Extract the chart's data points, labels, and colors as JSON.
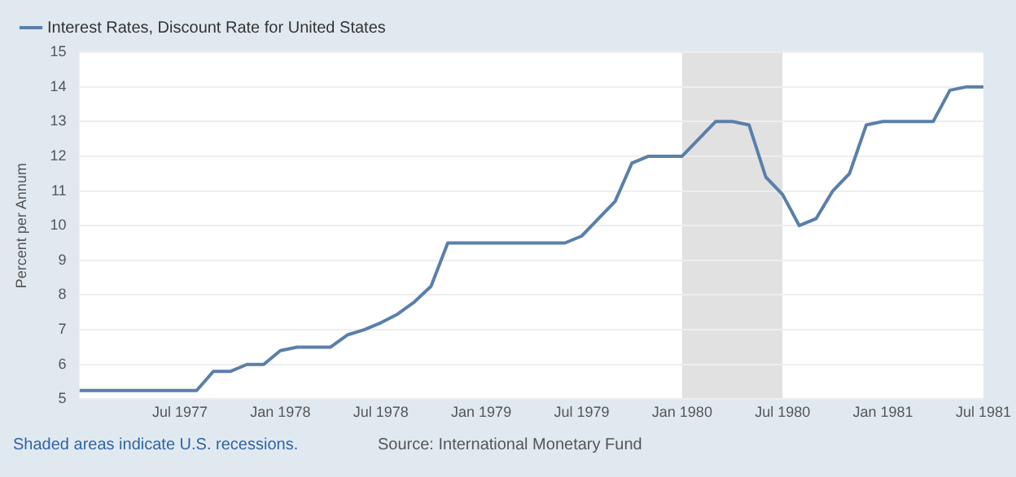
{
  "chart_data": {
    "type": "line",
    "ylabel": "Percent per Annum",
    "x": [
      "1977-01",
      "1977-02",
      "1977-03",
      "1977-04",
      "1977-05",
      "1977-06",
      "1977-07",
      "1977-08",
      "1977-09",
      "1977-10",
      "1977-11",
      "1977-12",
      "1978-01",
      "1978-02",
      "1978-03",
      "1978-04",
      "1978-05",
      "1978-06",
      "1978-07",
      "1978-08",
      "1978-09",
      "1978-10",
      "1978-11",
      "1978-12",
      "1979-01",
      "1979-02",
      "1979-03",
      "1979-04",
      "1979-05",
      "1979-06",
      "1979-07",
      "1979-08",
      "1979-09",
      "1979-10",
      "1979-11",
      "1979-12",
      "1980-01",
      "1980-02",
      "1980-03",
      "1980-04",
      "1980-05",
      "1980-06",
      "1980-07",
      "1980-08",
      "1980-09",
      "1980-10",
      "1980-11",
      "1980-12",
      "1981-01",
      "1981-02",
      "1981-03",
      "1981-04",
      "1981-05",
      "1981-06",
      "1981-07"
    ],
    "series": [
      {
        "name": "Interest Rates, Discount Rate for United States",
        "color": "#5a7fab",
        "values": [
          5.25,
          5.25,
          5.25,
          5.25,
          5.25,
          5.25,
          5.25,
          5.25,
          5.8,
          5.8,
          6.0,
          6.0,
          6.4,
          6.5,
          6.5,
          6.5,
          6.85,
          7.0,
          7.2,
          7.45,
          7.8,
          8.25,
          9.5,
          9.5,
          9.5,
          9.5,
          9.5,
          9.5,
          9.5,
          9.5,
          9.7,
          10.2,
          10.7,
          11.8,
          12.0,
          12.0,
          12.0,
          12.5,
          13.0,
          13.0,
          12.9,
          11.4,
          10.9,
          10.0,
          10.2,
          11.0,
          11.5,
          12.9,
          13.0,
          13.0,
          13.0,
          13.0,
          13.9,
          14.0,
          14.0
        ]
      }
    ],
    "xlim": [
      "1977-01",
      "1981-07"
    ],
    "xticks": [
      {
        "value": "1977-07",
        "label": "Jul 1977"
      },
      {
        "value": "1978-01",
        "label": "Jan 1978"
      },
      {
        "value": "1978-07",
        "label": "Jul 1978"
      },
      {
        "value": "1979-01",
        "label": "Jan 1979"
      },
      {
        "value": "1979-07",
        "label": "Jul 1979"
      },
      {
        "value": "1980-01",
        "label": "Jan 1980"
      },
      {
        "value": "1980-07",
        "label": "Jul 1980"
      },
      {
        "value": "1981-01",
        "label": "Jan 1981"
      },
      {
        "value": "1981-07",
        "label": "Jul 1981"
      }
    ],
    "ylim": [
      5,
      15
    ],
    "yticks": [
      5,
      6,
      7,
      8,
      9,
      10,
      11,
      12,
      13,
      14,
      15
    ],
    "bands": [
      {
        "axis": "x",
        "from": "1980-01",
        "to": "1980-07",
        "color": "#e1e1e1"
      }
    ],
    "grid": "y",
    "legend": "top left",
    "marker": "none",
    "line_style": "solid",
    "annotations": [
      "Shaded areas indicate U.S. recessions.",
      "Source: International Monetary Fund"
    ]
  }
}
